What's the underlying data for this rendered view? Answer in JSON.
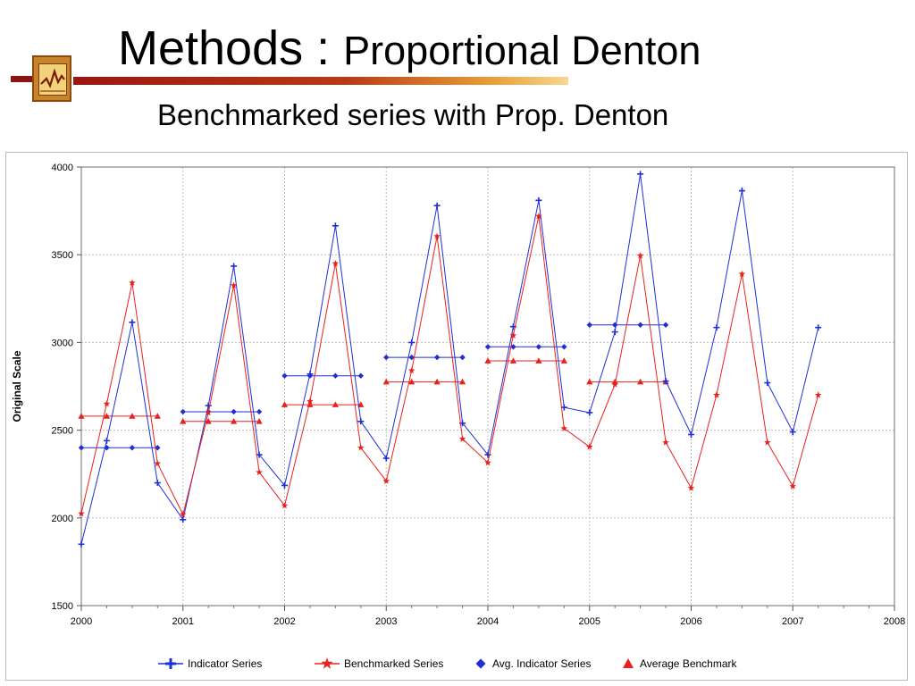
{
  "slide": {
    "title_main": "Methods :",
    "title_sub": "Proportional Denton",
    "caption": "Benchmarked series with Prop. Denton"
  },
  "chart_data": {
    "type": "line",
    "title": "",
    "xlabel": "",
    "ylabel": "Original Scale",
    "xlim": [
      2000,
      2008
    ],
    "ylim": [
      1500,
      4000
    ],
    "xticks": [
      "2000",
      "2001",
      "2002",
      "2003",
      "2004",
      "2005",
      "2006",
      "2007",
      "2008"
    ],
    "yticks": [
      "4000",
      "3500",
      "3000",
      "2500",
      "2000",
      "1500"
    ],
    "grid": true,
    "legend_position": "bottom",
    "quarters_x": [
      2000.0,
      2000.25,
      2000.5,
      2000.75,
      2001.0,
      2001.25,
      2001.5,
      2001.75,
      2002.0,
      2002.25,
      2002.5,
      2002.75,
      2003.0,
      2003.25,
      2003.5,
      2003.75,
      2004.0,
      2004.25,
      2004.5,
      2004.75,
      2005.0,
      2005.25,
      2005.5,
      2005.75,
      2006.0,
      2006.25,
      2006.5,
      2006.75,
      2007.0,
      2007.25
    ],
    "series": [
      {
        "name": "Indicator Series",
        "kind": "line",
        "marker": "plus",
        "color": "#1f2fd8",
        "values": [
          1850,
          2440,
          3115,
          2200,
          1990,
          2640,
          3435,
          2360,
          2185,
          2820,
          3665,
          2550,
          2340,
          3000,
          3780,
          2540,
          2360,
          3090,
          3810,
          2630,
          2600,
          3060,
          3960,
          2780,
          2475,
          3085,
          3865,
          2770,
          2490,
          3085
        ]
      },
      {
        "name": "Benchmarked Series",
        "kind": "line",
        "marker": "star",
        "color": "#e8211f",
        "values": [
          2025,
          2650,
          3340,
          2310,
          2020,
          2600,
          3325,
          2260,
          2070,
          2665,
          3450,
          2400,
          2210,
          2840,
          3605,
          2450,
          2315,
          3040,
          3720,
          2510,
          2405,
          2760,
          3495,
          2430,
          2170,
          2700,
          3390,
          2430,
          2180,
          2700
        ]
      },
      {
        "name": "Avg. Indicator Series",
        "kind": "step",
        "marker": "diamond",
        "color": "#1f2fd8",
        "values": [
          2400,
          2605,
          2810,
          2915,
          2975,
          3100
        ]
      },
      {
        "name": "Average Benchmark",
        "kind": "step",
        "marker": "triangle",
        "color": "#e8211f",
        "values": [
          2580,
          2550,
          2645,
          2775,
          2895,
          2775
        ]
      }
    ]
  }
}
